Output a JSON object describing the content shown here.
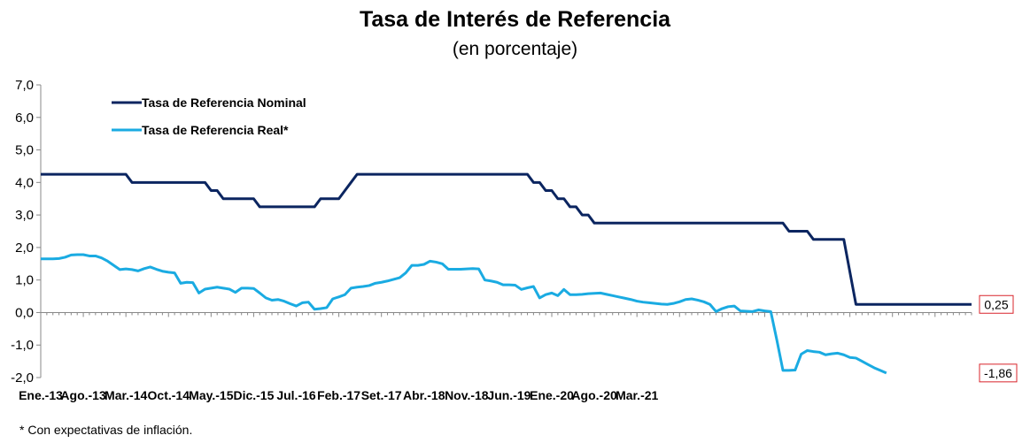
{
  "chart_data": {
    "type": "line",
    "title": "Tasa de Interés de Referencia",
    "subtitle": "(en porcentaje)",
    "footnote": "* Con expectativas de inflación.",
    "ylim": [
      -2.0,
      7.0
    ],
    "yticks": [
      "7,0",
      "6,0",
      "5,0",
      "4,0",
      "3,0",
      "2,0",
      "1,0",
      "0,0",
      "-1,0",
      "-2,0"
    ],
    "ytick_values": [
      7,
      6,
      5,
      4,
      3,
      2,
      1,
      0,
      -1,
      -2
    ],
    "x_start": "Ene.-13",
    "x_end": "Mar.-21",
    "x_tick_labels": [
      "Ene.-13",
      "Ago.-13",
      "Mar.-14",
      "Oct.-14",
      "May.-15",
      "Dic.-15",
      "Jul.-16",
      "Feb.-17",
      "Set.-17",
      "Abr.-18",
      "Nov.-18",
      "Jun.-19",
      "Ene.-20",
      "Ago.-20",
      "Mar.-21"
    ],
    "legend": {
      "position": "top-left"
    },
    "series": [
      {
        "name": "Tasa de Referencia Nominal",
        "color": "#0b2560",
        "values": [
          4.25,
          4.25,
          4.25,
          4.25,
          4.25,
          4.25,
          4.25,
          4.25,
          4.25,
          4.25,
          4.25,
          4.25,
          4.25,
          4.25,
          4.25,
          4.0,
          4.0,
          4.0,
          4.0,
          4.0,
          4.0,
          4.0,
          4.0,
          4.0,
          4.0,
          4.0,
          4.0,
          4.0,
          3.75,
          3.75,
          3.5,
          3.5,
          3.5,
          3.5,
          3.5,
          3.5,
          3.25,
          3.25,
          3.25,
          3.25,
          3.25,
          3.25,
          3.25,
          3.25,
          3.25,
          3.25,
          3.5,
          3.5,
          3.5,
          3.5,
          3.75,
          4.0,
          4.25,
          4.25,
          4.25,
          4.25,
          4.25,
          4.25,
          4.25,
          4.25,
          4.25,
          4.25,
          4.25,
          4.25,
          4.25,
          4.25,
          4.25,
          4.25,
          4.25,
          4.25,
          4.25,
          4.25,
          4.25,
          4.25,
          4.25,
          4.25,
          4.25,
          4.25,
          4.25,
          4.25,
          4.25,
          4.0,
          4.0,
          3.75,
          3.75,
          3.5,
          3.5,
          3.25,
          3.25,
          3.0,
          3.0,
          2.75,
          2.75,
          2.75,
          2.75,
          2.75,
          2.75,
          2.75,
          2.75,
          2.75,
          2.75,
          2.75,
          2.75,
          2.75,
          2.75,
          2.75,
          2.75,
          2.75,
          2.75,
          2.75,
          2.75,
          2.75,
          2.75,
          2.75,
          2.75,
          2.75,
          2.75,
          2.75,
          2.75,
          2.75,
          2.75,
          2.75,
          2.75,
          2.5,
          2.5,
          2.5,
          2.5,
          2.25,
          2.25,
          2.25,
          2.25,
          2.25,
          2.25,
          1.25,
          0.25,
          0.25,
          0.25,
          0.25,
          0.25,
          0.25,
          0.25,
          0.25,
          0.25,
          0.25,
          0.25,
          0.25,
          0.25,
          0.25,
          0.25,
          0.25,
          0.25,
          0.25,
          0.25,
          0.25
        ],
        "end_label": "0,25"
      },
      {
        "name": "Tasa de Referencia Real*",
        "color": "#1aabe2",
        "values": [
          1.65,
          1.65,
          1.65,
          1.66,
          1.7,
          1.77,
          1.78,
          1.78,
          1.74,
          1.74,
          1.68,
          1.58,
          1.45,
          1.32,
          1.34,
          1.32,
          1.28,
          1.35,
          1.4,
          1.33,
          1.27,
          1.24,
          1.22,
          0.9,
          0.93,
          0.92,
          0.6,
          0.72,
          0.75,
          0.78,
          0.75,
          0.72,
          0.62,
          0.75,
          0.75,
          0.74,
          0.6,
          0.45,
          0.38,
          0.4,
          0.35,
          0.27,
          0.2,
          0.3,
          0.32,
          0.1,
          0.12,
          0.15,
          0.42,
          0.48,
          0.55,
          0.75,
          0.78,
          0.8,
          0.83,
          0.9,
          0.93,
          0.97,
          1.02,
          1.07,
          1.22,
          1.45,
          1.45,
          1.48,
          1.58,
          1.55,
          1.5,
          1.33,
          1.33,
          1.33,
          1.34,
          1.35,
          1.34,
          1.0,
          0.97,
          0.93,
          0.85,
          0.85,
          0.84,
          0.71,
          0.76,
          0.8,
          0.45,
          0.55,
          0.6,
          0.52,
          0.71,
          0.55,
          0.55,
          0.56,
          0.58,
          0.59,
          0.6,
          0.56,
          0.52,
          0.48,
          0.44,
          0.4,
          0.35,
          0.32,
          0.3,
          0.28,
          0.26,
          0.25,
          0.28,
          0.33,
          0.4,
          0.42,
          0.38,
          0.33,
          0.25,
          0.03,
          0.12,
          0.18,
          0.2,
          0.05,
          0.04,
          0.03,
          0.08,
          0.05,
          0.03,
          -0.85,
          -1.78,
          -1.78,
          -1.77,
          -1.28,
          -1.17,
          -1.2,
          -1.22,
          -1.3,
          -1.27,
          -1.25,
          -1.3,
          -1.38,
          -1.4,
          -1.5,
          -1.6,
          -1.7,
          -1.78,
          -1.86
        ],
        "end_label": "-1,86"
      }
    ]
  }
}
